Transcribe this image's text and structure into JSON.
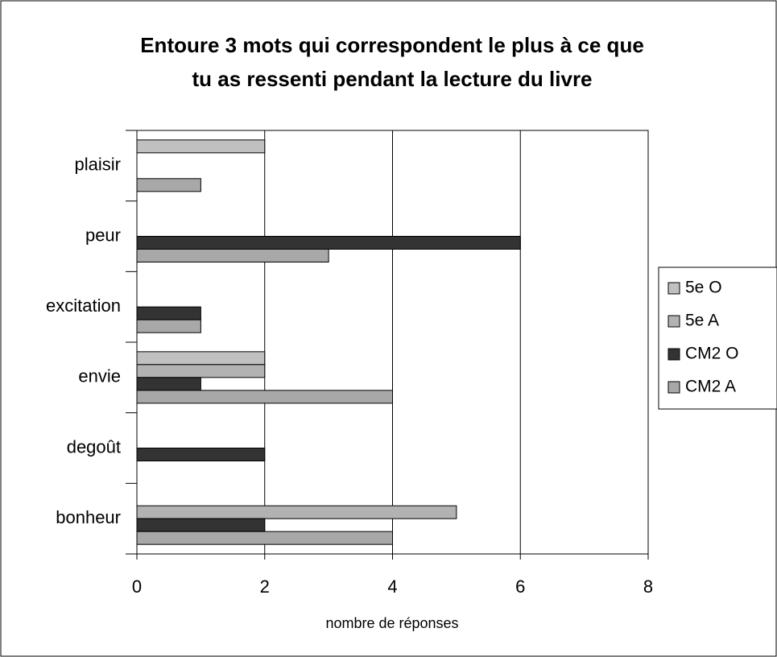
{
  "chart_data": {
    "type": "hbar",
    "title": [
      "Entoure 3 mots qui correspondent le plus à ce que",
      "tu as ressenti pendant la lecture du livre"
    ],
    "x_label": "nombre de réponses",
    "categories": [
      "plaisir",
      "peur",
      "excitation",
      "envie",
      "degoût",
      "bonheur"
    ],
    "series": [
      {
        "name": "5e O",
        "color": "#c0c0c0",
        "values": [
          2,
          0,
          0,
          2,
          0,
          0
        ]
      },
      {
        "name": "5e A",
        "color": "#b2b2b2",
        "values": [
          0,
          0,
          0,
          2,
          0,
          5
        ]
      },
      {
        "name": "CM2 O",
        "color": "#333333",
        "values": [
          0,
          6,
          1,
          1,
          2,
          2
        ]
      },
      {
        "name": "CM2 A",
        "color": "#a8a8a8",
        "values": [
          1,
          3,
          1,
          4,
          0,
          4
        ]
      }
    ],
    "xlim": [
      0,
      8
    ],
    "xticks": [
      0,
      2,
      4,
      6,
      8
    ],
    "grid": true,
    "legend": "right"
  }
}
